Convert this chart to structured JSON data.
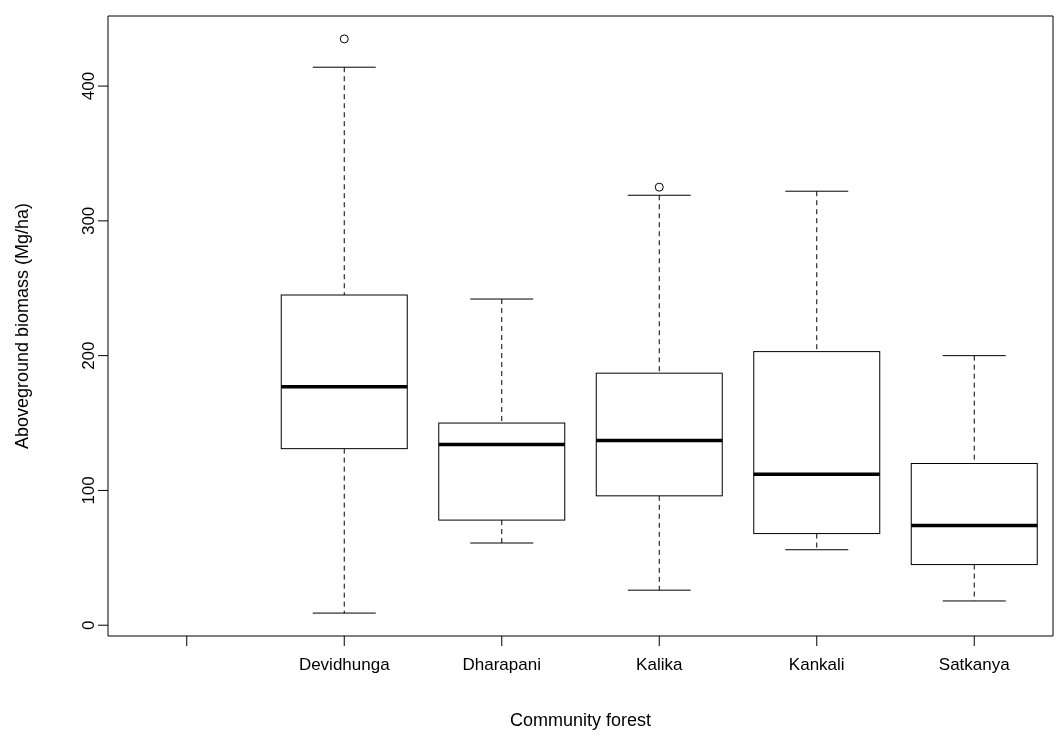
{
  "chart_data": {
    "type": "box",
    "xlabel": "Community forest",
    "ylabel": "Aboveground biomass (Mg/ha)",
    "categories": [
      null,
      "Devidhunga",
      "Dharapani",
      "Kalika",
      "Kankali",
      "Satkanya"
    ],
    "boxes": [
      null,
      {
        "low": 9,
        "q1": 131,
        "median": 177,
        "q3": 245,
        "high": 414,
        "outliers": [
          435
        ]
      },
      {
        "low": 61,
        "q1": 78,
        "median": 134,
        "q3": 150,
        "high": 242
      },
      {
        "low": 26,
        "q1": 96,
        "median": 137,
        "q3": 187,
        "high": 319,
        "outliers": [
          325
        ]
      },
      {
        "low": 56,
        "q1": 68,
        "median": 112,
        "q3": 203,
        "high": 322
      },
      {
        "low": 18,
        "q1": 45,
        "median": 74,
        "q3": 120,
        "high": 200
      }
    ],
    "ylim": [
      -8,
      452
    ],
    "yticks": [
      0,
      100,
      200,
      300,
      400
    ],
    "grid": false
  }
}
